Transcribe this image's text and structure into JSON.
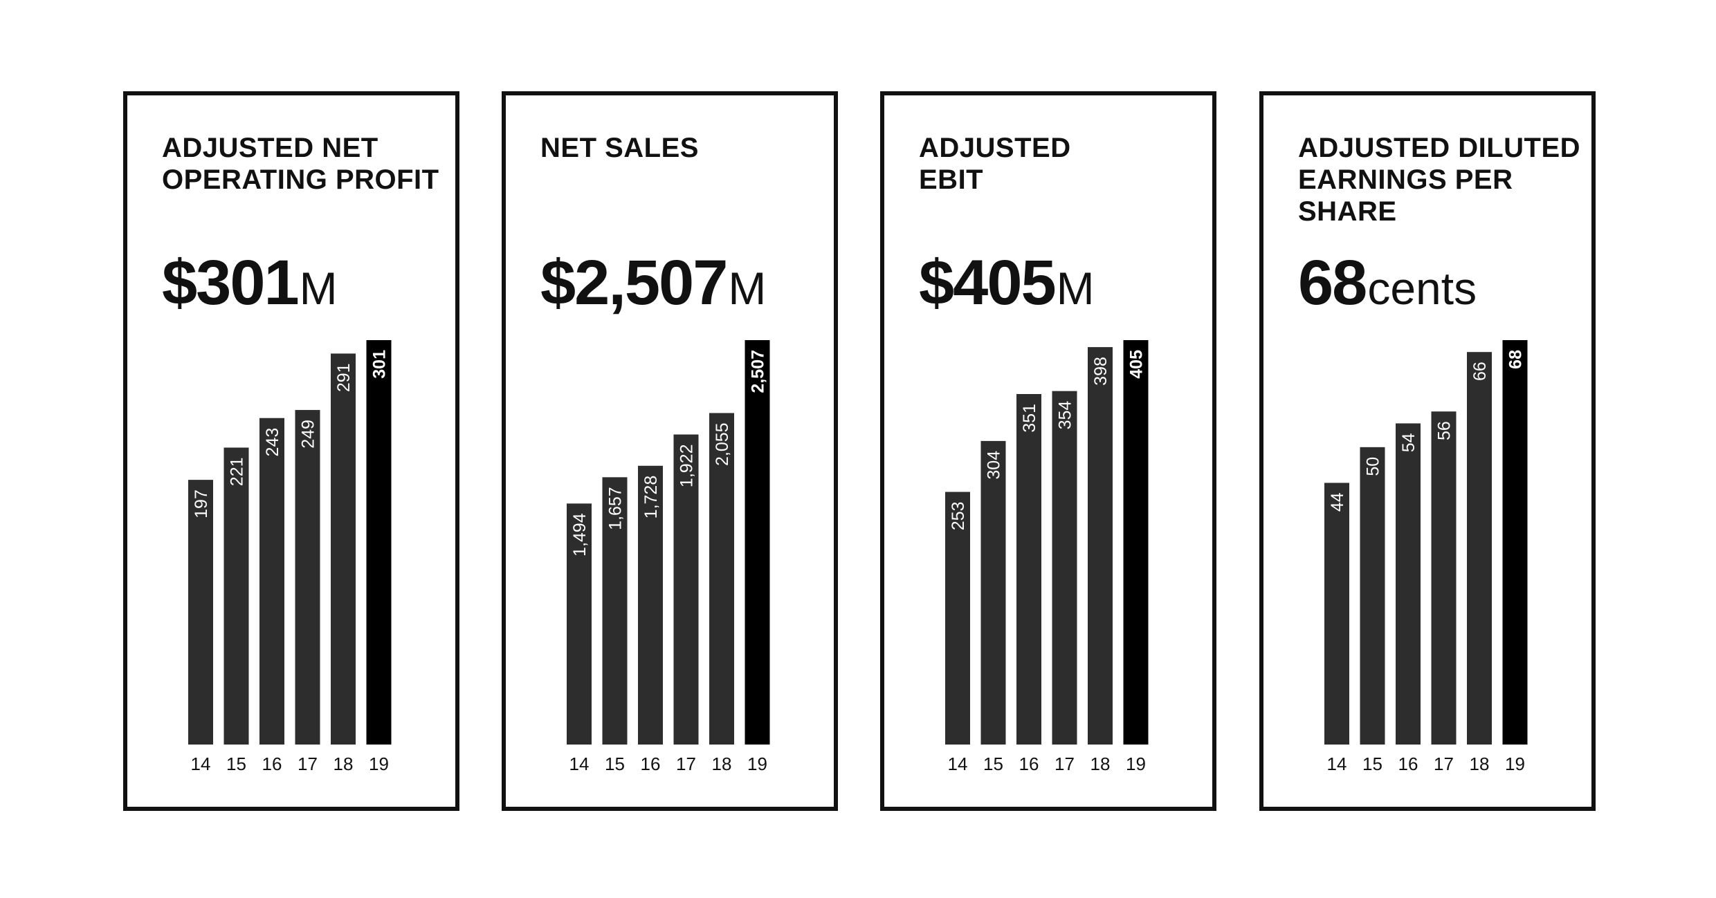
{
  "cards": [
    {
      "title": "ADJUSTED NET OPERATING PROFIT",
      "value": "$301",
      "unit": "M"
    },
    {
      "title": "NET SALES",
      "value": "$2,507",
      "unit": "M"
    },
    {
      "title": "ADJUSTED EBIT",
      "value": "$405",
      "unit": "M"
    },
    {
      "title": "ADJUSTED DILUTED EARNINGS PER SHARE",
      "value": "68",
      "unit": "cents"
    }
  ],
  "colors": {
    "bar": "#2d2d2d",
    "highlight_bar": "#000000",
    "bar_label": "#ffffff",
    "axis_text": "#111111"
  },
  "chart_data": [
    {
      "type": "bar",
      "title": "ADJUSTED NET OPERATING PROFIT",
      "categories": [
        "14",
        "15",
        "16",
        "17",
        "18",
        "19"
      ],
      "values": [
        197,
        221,
        243,
        249,
        291,
        301
      ],
      "value_labels": [
        "197",
        "221",
        "243",
        "249",
        "291",
        "301"
      ],
      "highlight_index": 5,
      "ylim": [
        0,
        301
      ]
    },
    {
      "type": "bar",
      "title": "NET SALES",
      "categories": [
        "14",
        "15",
        "16",
        "17",
        "18",
        "19"
      ],
      "values": [
        1494,
        1657,
        1728,
        1922,
        2055,
        2507
      ],
      "value_labels": [
        "1,494",
        "1,657",
        "1,728",
        "1,922",
        "2,055",
        "2,507"
      ],
      "highlight_index": 5,
      "ylim": [
        0,
        2507
      ]
    },
    {
      "type": "bar",
      "title": "ADJUSTED EBIT",
      "categories": [
        "14",
        "15",
        "16",
        "17",
        "18",
        "19"
      ],
      "values": [
        253,
        304,
        351,
        354,
        398,
        405
      ],
      "value_labels": [
        "253",
        "304",
        "351",
        "354",
        "398",
        "405"
      ],
      "highlight_index": 5,
      "ylim": [
        0,
        405
      ]
    },
    {
      "type": "bar",
      "title": "ADJUSTED DILUTED EARNINGS PER SHARE",
      "categories": [
        "14",
        "15",
        "16",
        "17",
        "18",
        "19"
      ],
      "values": [
        44,
        50,
        54,
        56,
        66,
        68
      ],
      "value_labels": [
        "44",
        "50",
        "54",
        "56",
        "66",
        "68"
      ],
      "highlight_index": 5,
      "ylim": [
        0,
        68
      ]
    }
  ]
}
